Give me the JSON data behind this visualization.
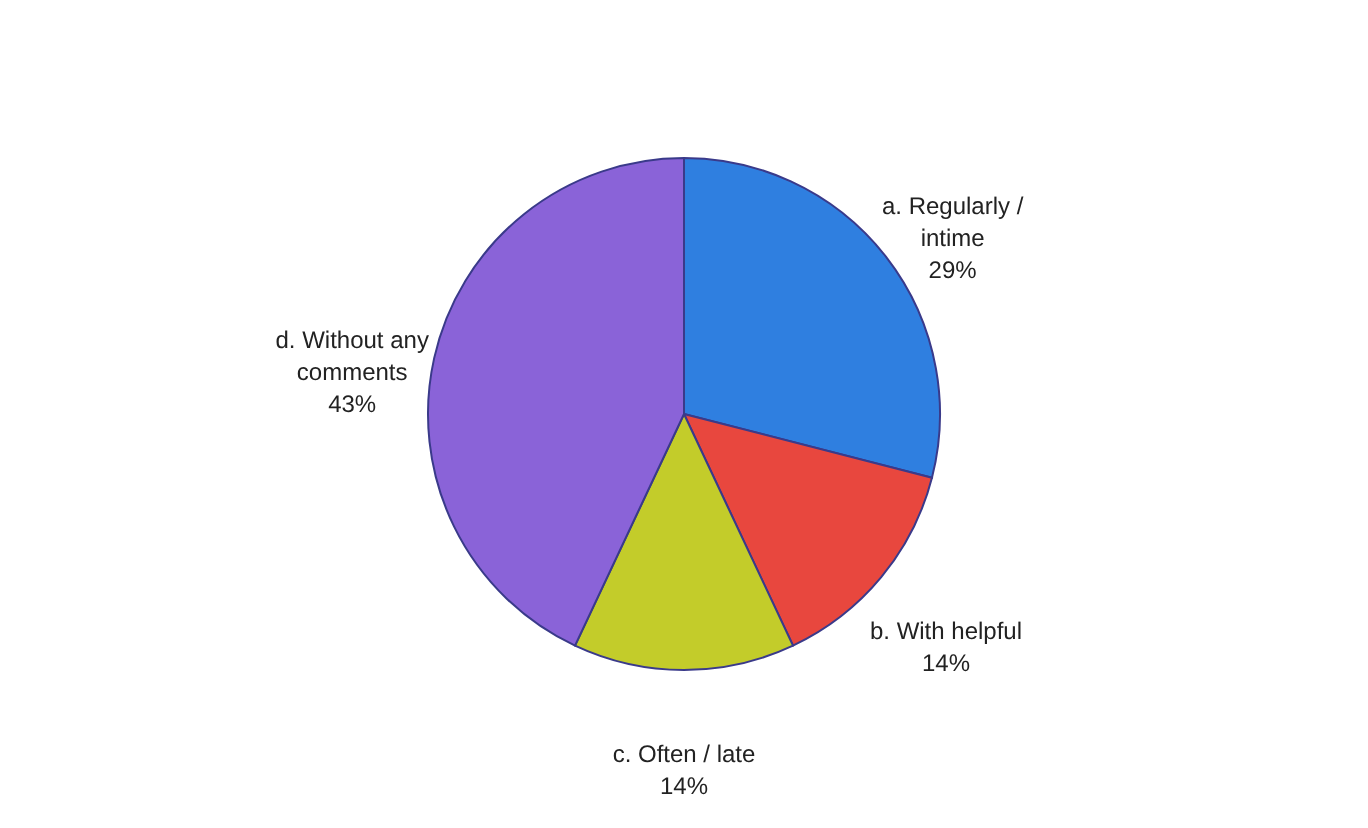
{
  "chart_data": {
    "type": "pie",
    "categories": [
      "a. Regularly / intime",
      "b. With helpful",
      "c. Often / late",
      "d. Without any comments"
    ],
    "values": [
      29,
      14,
      14,
      43
    ],
    "colors": [
      "#2f7fe0",
      "#e8473e",
      "#c3cc2a",
      "#8a63d8"
    ],
    "value_labels": [
      "29%",
      "14%",
      "14%",
      "43%"
    ],
    "legend": false
  }
}
